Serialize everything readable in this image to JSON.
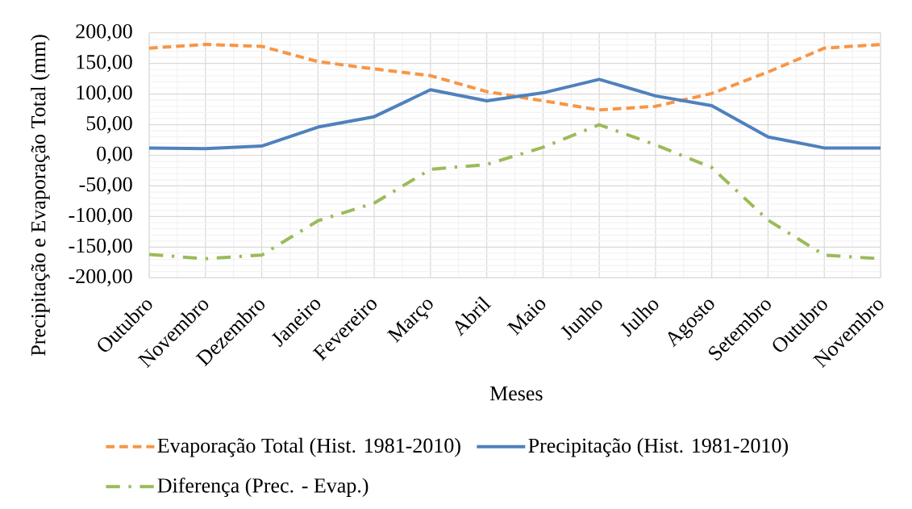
{
  "chart_data": {
    "type": "line",
    "xlabel": "Meses",
    "ylabel": "Precipitação e Evaporação Total (mm)",
    "categories": [
      "Outubro",
      "Novembro",
      "Dezembro",
      "Janeiro",
      "Fevereiro",
      "Março",
      "Abril",
      "Maio",
      "Junho",
      "Julho",
      "Agosto",
      "Setembro",
      "Outubro",
      "Novembro"
    ],
    "series": [
      {
        "name": "Evaporação Total (Hist. 1981-2010)",
        "color": "#f79646",
        "line_style": "dashed",
        "values": [
          175,
          181,
          178,
          153,
          141,
          130,
          104,
          89,
          74,
          80,
          101,
          136,
          175,
          181
        ]
      },
      {
        "name": "Precipitação (Hist. 1981-2010)",
        "color": "#4f81bd",
        "line_style": "solid",
        "values": [
          12,
          11,
          15,
          46,
          63,
          107,
          89,
          102,
          124,
          97,
          81,
          30,
          12,
          12
        ]
      },
      {
        "name": "Diferença (Prec. - Evap.)",
        "color": "#9bbb59",
        "line_style": "dashdot",
        "values": [
          -162,
          -169,
          -163,
          -107,
          -78,
          -23,
          -15,
          13,
          50,
          17,
          -20,
          -106,
          -163,
          -169
        ]
      }
    ],
    "ylim": [
      -200,
      200
    ],
    "yticks": [
      {
        "value": -200,
        "label": "-200,00"
      },
      {
        "value": -150,
        "label": "-150,00"
      },
      {
        "value": -100,
        "label": "-100,00"
      },
      {
        "value": -50,
        "label": "-50,00"
      },
      {
        "value": 0,
        "label": "0,00"
      },
      {
        "value": 50,
        "label": "50,00"
      },
      {
        "value": 100,
        "label": "100,00"
      },
      {
        "value": 150,
        "label": "150,00"
      },
      {
        "value": 200,
        "label": "200,00"
      }
    ],
    "grid": true,
    "legend": "bottom"
  }
}
